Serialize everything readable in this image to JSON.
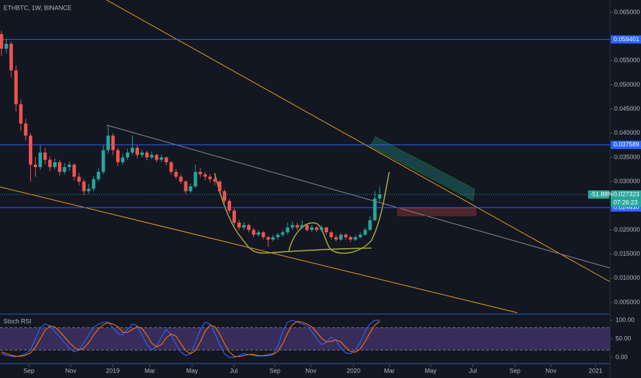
{
  "chart_data": {
    "type": "candlestick",
    "title": "ETHBTC, 1W, BINANCE",
    "indicator_title": "Stoch RSI",
    "change_label": "-51.88%",
    "countdown": "07:26:23",
    "xlim": [
      -0.3,
      125.5
    ],
    "xticks": [
      {
        "value": 5.66,
        "label": "Sep"
      },
      {
        "value": 14.3,
        "label": "Nov"
      },
      {
        "value": 22.96,
        "label": "2019"
      },
      {
        "value": 30.6,
        "label": "Mar"
      },
      {
        "value": 39.3,
        "label": "May"
      },
      {
        "value": 47.9,
        "label": "Jul"
      },
      {
        "value": 56.4,
        "label": "Sep"
      },
      {
        "value": 63.8,
        "label": "Nov"
      },
      {
        "value": 72.6,
        "label": "2020"
      },
      {
        "value": 80.0,
        "label": "Mar"
      },
      {
        "value": 88.5,
        "label": "May"
      },
      {
        "value": 97.2,
        "label": "Jul"
      },
      {
        "value": 105.9,
        "label": "Sep"
      },
      {
        "value": 113.3,
        "label": "Nov"
      },
      {
        "value": 122.5,
        "label": "2021"
      }
    ],
    "ylim": [
      0.00287,
      0.06756
    ],
    "yticks": [
      {
        "value": 0.065,
        "label": "0.065000"
      },
      {
        "value": 0.055,
        "label": "0.055000"
      },
      {
        "value": 0.05,
        "label": "0.050000"
      },
      {
        "value": 0.045,
        "label": "0.045000"
      },
      {
        "value": 0.04,
        "label": "0.040000"
      },
      {
        "value": 0.035,
        "label": "0.035000"
      },
      {
        "value": 0.03,
        "label": "0.030000"
      },
      {
        "value": 0.02,
        "label": "0.020000"
      },
      {
        "value": 0.015,
        "label": "0.015000"
      },
      {
        "value": 0.01,
        "label": "0.010000"
      },
      {
        "value": 0.005,
        "label": "0.005000"
      }
    ],
    "levels": [
      0.059401,
      0.037589,
      {
        "value": 0.02463,
        "label": "0.024630"
      }
    ],
    "up_color": "#26a69a",
    "down_color": "#ef5350",
    "level_color": "#2962ff",
    "candles": [
      [
        0.0605,
        0.0612,
        0.056,
        0.0575
      ],
      [
        0.0575,
        0.0595,
        0.0565,
        0.0585
      ],
      [
        0.0585,
        0.059,
        0.0515,
        0.053
      ],
      [
        0.053,
        0.054,
        0.0445,
        0.046
      ],
      [
        0.046,
        0.047,
        0.0405,
        0.042
      ],
      [
        0.042,
        0.043,
        0.0385,
        0.0395
      ],
      [
        0.0395,
        0.04,
        0.03,
        0.0335
      ],
      [
        0.0335,
        0.035,
        0.031,
        0.033
      ],
      [
        0.033,
        0.0375,
        0.0325,
        0.036
      ],
      [
        0.036,
        0.037,
        0.0335,
        0.0345
      ],
      [
        0.0345,
        0.0352,
        0.0322,
        0.033
      ],
      [
        0.033,
        0.0348,
        0.0325,
        0.034
      ],
      [
        0.034,
        0.0345,
        0.0312,
        0.032
      ],
      [
        0.032,
        0.0338,
        0.0315,
        0.033
      ],
      [
        0.033,
        0.0342,
        0.0322,
        0.0335
      ],
      [
        0.0335,
        0.0338,
        0.0302,
        0.031
      ],
      [
        0.031,
        0.0318,
        0.0292,
        0.03
      ],
      [
        0.03,
        0.0305,
        0.0272,
        0.028
      ],
      [
        0.028,
        0.0295,
        0.0275,
        0.0285
      ],
      [
        0.0285,
        0.0312,
        0.028,
        0.0305
      ],
      [
        0.0305,
        0.0328,
        0.03,
        0.032
      ],
      [
        0.032,
        0.0375,
        0.0315,
        0.0365
      ],
      [
        0.0365,
        0.0415,
        0.0358,
        0.0395
      ],
      [
        0.0395,
        0.04,
        0.0355,
        0.0365
      ],
      [
        0.0365,
        0.037,
        0.0332,
        0.034
      ],
      [
        0.034,
        0.0358,
        0.0335,
        0.035
      ],
      [
        0.035,
        0.0368,
        0.0345,
        0.036
      ],
      [
        0.036,
        0.0395,
        0.0355,
        0.037
      ],
      [
        0.037,
        0.0375,
        0.0348,
        0.0355
      ],
      [
        0.0355,
        0.0366,
        0.035,
        0.036
      ],
      [
        0.036,
        0.0364,
        0.0344,
        0.035
      ],
      [
        0.035,
        0.0362,
        0.0346,
        0.0355
      ],
      [
        0.0355,
        0.0358,
        0.034,
        0.0345
      ],
      [
        0.0345,
        0.0356,
        0.034,
        0.035
      ],
      [
        0.035,
        0.0352,
        0.0334,
        0.034
      ],
      [
        0.034,
        0.0343,
        0.0315,
        0.032
      ],
      [
        0.032,
        0.0326,
        0.0305,
        0.031
      ],
      [
        0.031,
        0.0315,
        0.0295,
        0.03
      ],
      [
        0.03,
        0.0303,
        0.0275,
        0.028
      ],
      [
        0.028,
        0.0296,
        0.0276,
        0.029
      ],
      [
        0.029,
        0.0335,
        0.0286,
        0.032
      ],
      [
        0.032,
        0.0328,
        0.0308,
        0.0315
      ],
      [
        0.0315,
        0.032,
        0.0302,
        0.031
      ],
      [
        0.031,
        0.0316,
        0.0298,
        0.0305
      ],
      [
        0.0305,
        0.031,
        0.0292,
        0.03
      ],
      [
        0.03,
        0.0303,
        0.0275,
        0.028
      ],
      [
        0.028,
        0.0284,
        0.0255,
        0.026
      ],
      [
        0.026,
        0.0264,
        0.0235,
        0.024
      ],
      [
        0.024,
        0.0245,
        0.021,
        0.0215
      ],
      [
        0.0215,
        0.022,
        0.02,
        0.0205
      ],
      [
        0.0205,
        0.0216,
        0.02,
        0.021
      ],
      [
        0.021,
        0.0213,
        0.0195,
        0.02
      ],
      [
        0.02,
        0.0204,
        0.0185,
        0.019
      ],
      [
        0.019,
        0.02,
        0.0186,
        0.0195
      ],
      [
        0.0195,
        0.0198,
        0.018,
        0.0185
      ],
      [
        0.0185,
        0.0188,
        0.0165,
        0.018
      ],
      [
        0.018,
        0.019,
        0.0176,
        0.0185
      ],
      [
        0.0185,
        0.0194,
        0.018,
        0.019
      ],
      [
        0.019,
        0.02,
        0.0186,
        0.0195
      ],
      [
        0.0195,
        0.0215,
        0.019,
        0.0205
      ],
      [
        0.0205,
        0.0218,
        0.02,
        0.021
      ],
      [
        0.021,
        0.0215,
        0.02,
        0.0205
      ],
      [
        0.0205,
        0.022,
        0.0202,
        0.021
      ],
      [
        0.021,
        0.0213,
        0.0196,
        0.02
      ],
      [
        0.02,
        0.021,
        0.0196,
        0.0205
      ],
      [
        0.0205,
        0.0208,
        0.0195,
        0.02
      ],
      [
        0.02,
        0.021,
        0.0197,
        0.0205
      ],
      [
        0.0205,
        0.0207,
        0.019,
        0.0195
      ],
      [
        0.0195,
        0.0198,
        0.018,
        0.0185
      ],
      [
        0.0185,
        0.019,
        0.0176,
        0.018
      ],
      [
        0.018,
        0.0194,
        0.0177,
        0.019
      ],
      [
        0.019,
        0.0193,
        0.018,
        0.0185
      ],
      [
        0.0185,
        0.0188,
        0.0175,
        0.018
      ],
      [
        0.018,
        0.019,
        0.0177,
        0.0185
      ],
      [
        0.0185,
        0.0195,
        0.0182,
        0.019
      ],
      [
        0.019,
        0.0205,
        0.0188,
        0.02
      ],
      [
        0.02,
        0.0228,
        0.0198,
        0.022
      ],
      [
        0.022,
        0.028,
        0.0218,
        0.0265
      ],
      [
        0.0265,
        0.029,
        0.0258,
        0.027323
      ]
    ],
    "stoch": {
      "ylim": [
        -14.8,
        111.1
      ],
      "yticks": [
        {
          "value": 100,
          "label": "100.00"
        },
        {
          "value": 50,
          "label": "50.00"
        },
        {
          "value": 0,
          "label": "0.00"
        }
      ],
      "bands": [
        80,
        20
      ],
      "band_fill": "#7e57c2",
      "series": [
        {
          "color": "#2962ff",
          "values": [
            10,
            5,
            3,
            2,
            5,
            10,
            20,
            50,
            80,
            90,
            85,
            70,
            55,
            40,
            25,
            15,
            20,
            40,
            60,
            80,
            90,
            95,
            95,
            80,
            65,
            60,
            75,
            90,
            85,
            60,
            35,
            20,
            30,
            55,
            75,
            60,
            35,
            15,
            5,
            10,
            40,
            75,
            95,
            90,
            65,
            35,
            10,
            0,
            0,
            5,
            10,
            8,
            5,
            3,
            5,
            8,
            10,
            30,
            70,
            95,
            100,
            95,
            90,
            85,
            70,
            50,
            35,
            40,
            55,
            45,
            25,
            12,
            10,
            20,
            40,
            70,
            90,
            100,
            100
          ]
        },
        {
          "color": "#ff6d00",
          "values": [
            15,
            10,
            6,
            3,
            3,
            6,
            12,
            27,
            50,
            73,
            85,
            82,
            70,
            55,
            40,
            27,
            20,
            25,
            40,
            60,
            77,
            88,
            93,
            90,
            83,
            68,
            67,
            75,
            83,
            78,
            60,
            38,
            28,
            35,
            53,
            63,
            57,
            37,
            18,
            10,
            18,
            42,
            70,
            87,
            83,
            63,
            37,
            15,
            3,
            2,
            5,
            8,
            8,
            5,
            4,
            5,
            8,
            16,
            37,
            65,
            88,
            97,
            95,
            90,
            82,
            68,
            52,
            42,
            43,
            47,
            42,
            27,
            16,
            14,
            23,
            43,
            67,
            87,
            97
          ]
        }
      ]
    }
  }
}
